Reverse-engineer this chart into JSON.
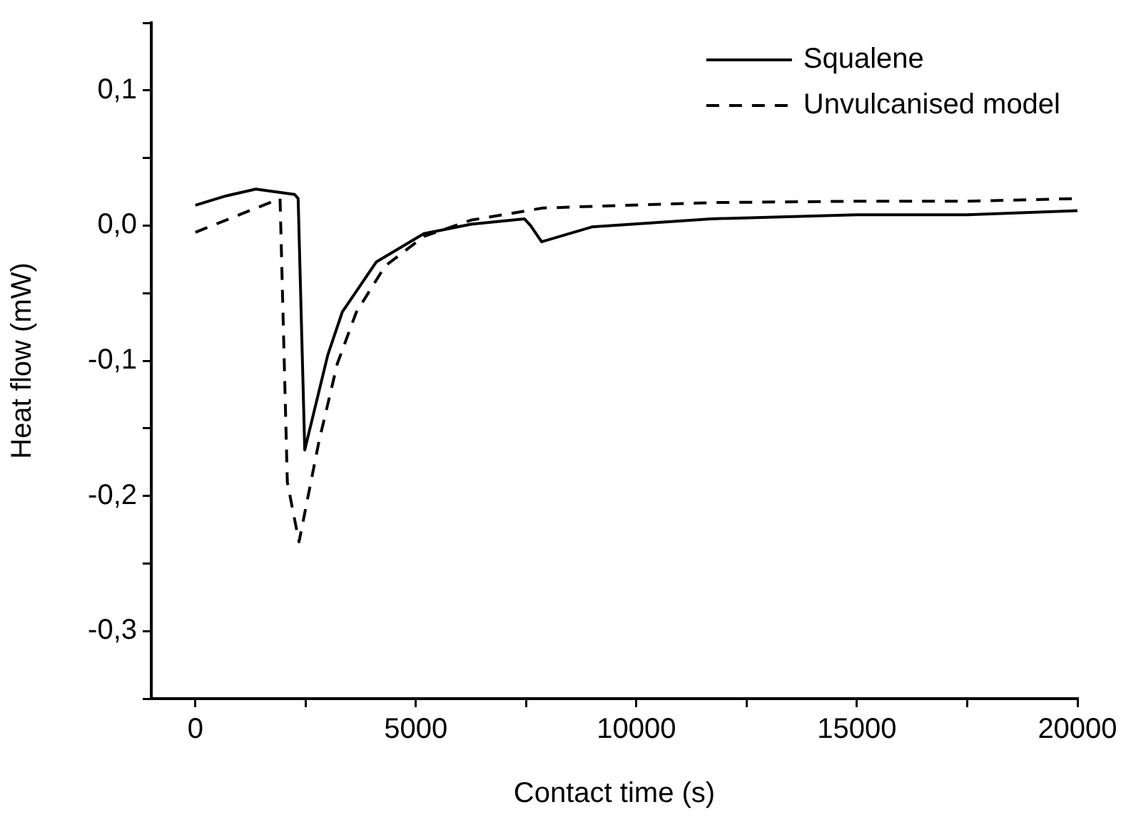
{
  "chart_data": {
    "type": "line",
    "xlabel": "Contact time (s)",
    "ylabel": "Heat flow (mW)",
    "xlim": [
      -1000,
      20000
    ],
    "xticks": [
      0,
      {
        "value": 2500,
        "label": null
      },
      5000,
      {
        "value": 7500,
        "label": null
      },
      10000,
      {
        "value": 12500,
        "label": null
      },
      15000,
      {
        "value": 17500,
        "label": null
      },
      20000
    ],
    "ylim": [
      -0.35,
      0.15
    ],
    "yticks": [
      {
        "value": -0.35,
        "label": null
      },
      {
        "value": -0.3,
        "label": "-0,3"
      },
      {
        "value": -0.25,
        "label": null
      },
      {
        "value": -0.2,
        "label": "-0,2"
      },
      {
        "value": -0.15,
        "label": null
      },
      {
        "value": -0.1,
        "label": "-0,1"
      },
      {
        "value": -0.05,
        "label": null
      },
      {
        "value": 0,
        "label": "0,0"
      },
      {
        "value": 0.05,
        "label": null
      },
      {
        "value": 0.1,
        "label": "0,1"
      },
      {
        "value": 0.15,
        "label": null
      }
    ],
    "grid": false,
    "legend": "top right",
    "marker": "none",
    "series": [
      {
        "name": "Squalene",
        "color": "#000000",
        "line_style": "solid",
        "x": [
          0,
          700,
          1370,
          2250,
          2330,
          2480,
          3000,
          3330,
          4100,
          5180,
          6250,
          7460,
          7600,
          7850,
          8990,
          11700,
          15000,
          17500,
          20000
        ],
        "values": [
          0.015,
          0.022,
          0.027,
          0.023,
          0.02,
          -0.166,
          -0.096,
          -0.064,
          -0.027,
          -0.006,
          0.001,
          0.005,
          0.0,
          -0.012,
          -0.001,
          0.005,
          0.008,
          0.008,
          0.011
        ]
      },
      {
        "name": "Unvulcanised model",
        "color": "#000000",
        "line_style": "dashed",
        "x": [
          0,
          1920,
          2085,
          2350,
          2800,
          3220,
          3650,
          4300,
          5180,
          6250,
          7880,
          11700,
          15000,
          17500,
          20000
        ],
        "values": [
          -0.005,
          0.02,
          -0.19,
          -0.234,
          -0.16,
          -0.102,
          -0.064,
          -0.03,
          -0.008,
          0.004,
          0.013,
          0.017,
          0.018,
          0.018,
          0.02
        ]
      }
    ]
  }
}
